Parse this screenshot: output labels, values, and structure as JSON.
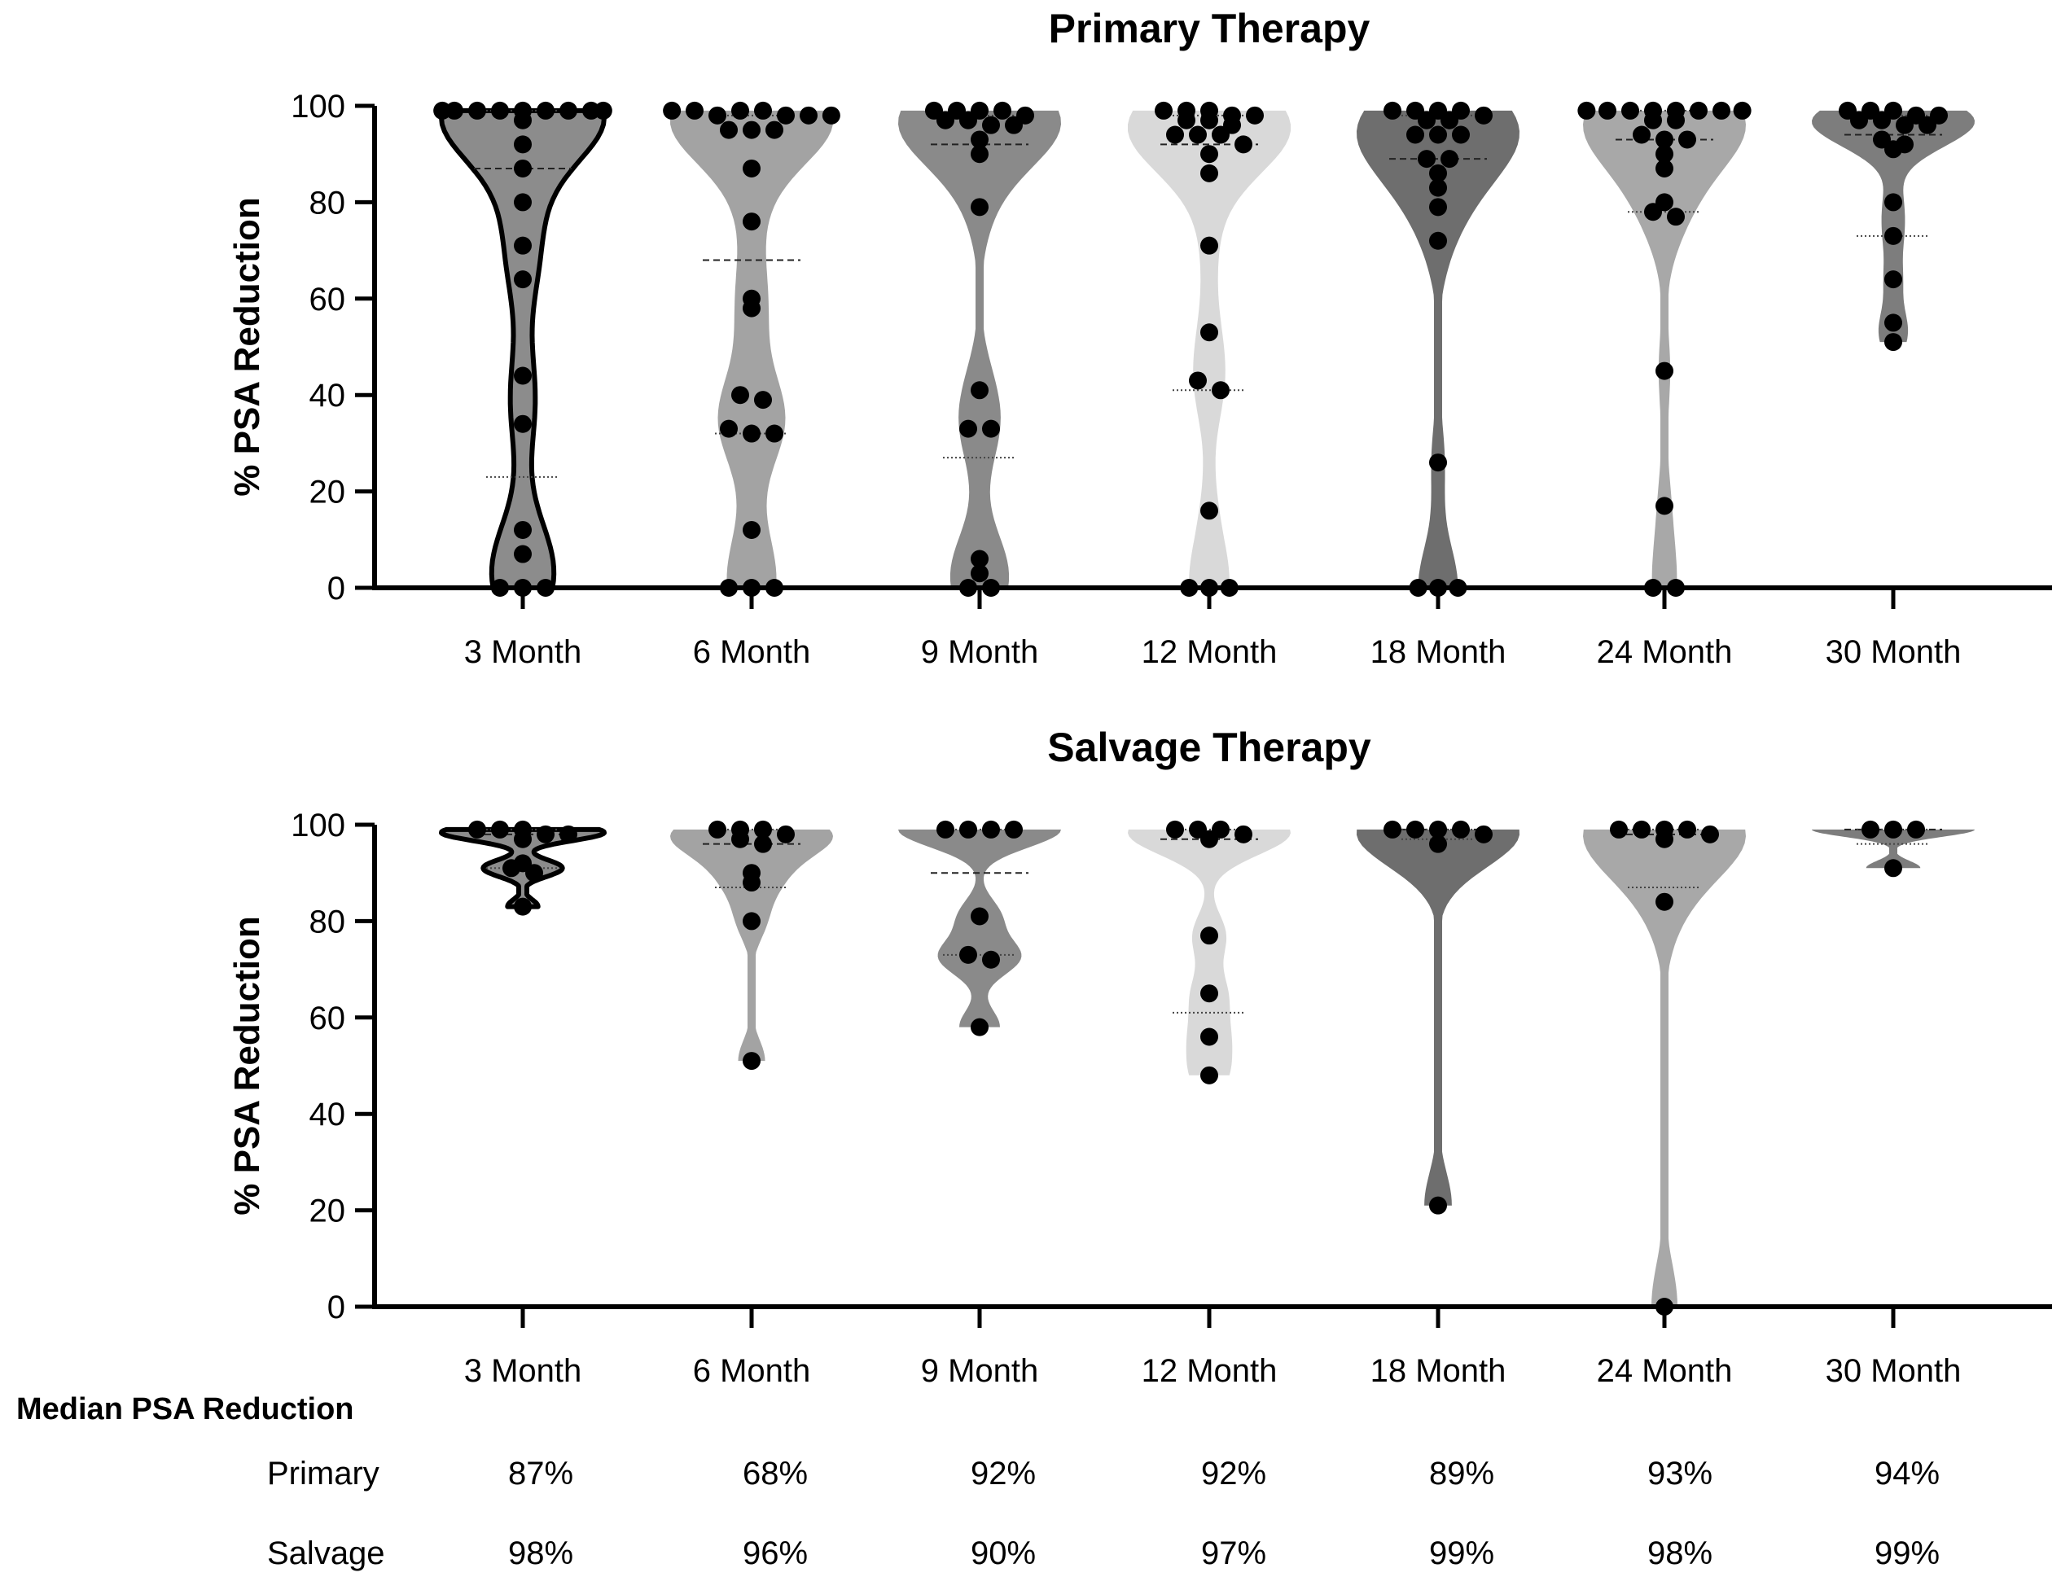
{
  "chart_data": [
    {
      "type": "violin",
      "title": "Primary Therapy",
      "ylabel": "% PSA Reduction",
      "xlabel": "",
      "ylim": [
        0,
        100
      ],
      "yticks": [
        0,
        20,
        40,
        60,
        80,
        100
      ],
      "categories": [
        "3 Month",
        "6 Month",
        "9 Month",
        "12 Month",
        "18 Month",
        "24 Month",
        "30 Month"
      ],
      "fill_colors": [
        "#8c8c8c",
        "#a3a3a3",
        "#8a8a8a",
        "#d9d9d9",
        "#6e6e6e",
        "#a8a8a8",
        "#7d7d7d"
      ],
      "series": [
        {
          "name": "3 Month",
          "median": 87,
          "q1": 23,
          "q3": 99,
          "points": [
            99,
            99,
            99,
            99,
            99,
            99,
            99,
            99,
            99,
            97,
            92,
            87,
            80,
            71,
            64,
            44,
            34,
            12,
            7,
            0,
            0,
            0
          ]
        },
        {
          "name": "6 Month",
          "median": 68,
          "q1": 32,
          "q3": 98,
          "points": [
            99,
            99,
            98,
            99,
            99,
            98,
            98,
            98,
            95,
            95,
            95,
            87,
            76,
            60,
            58,
            40,
            39,
            33,
            32,
            32,
            12,
            0,
            0,
            0
          ]
        },
        {
          "name": "9 Month",
          "median": 92,
          "q1": 27,
          "q3": 98,
          "points": [
            99,
            99,
            99,
            99,
            98,
            97,
            97,
            96,
            96,
            93,
            90,
            79,
            41,
            33,
            33,
            6,
            3,
            0,
            0
          ]
        },
        {
          "name": "12 Month",
          "median": 92,
          "q1": 41,
          "q3": 98,
          "points": [
            99,
            99,
            99,
            98,
            98,
            97,
            97,
            96,
            94,
            94,
            94,
            92,
            90,
            86,
            71,
            53,
            43,
            41,
            16,
            0,
            0,
            0
          ]
        },
        {
          "name": "18 Month",
          "median": 89,
          "q1": 0,
          "q3": 98,
          "points": [
            99,
            99,
            99,
            99,
            98,
            97,
            97,
            94,
            94,
            94,
            89,
            89,
            86,
            83,
            79,
            72,
            26,
            0,
            0,
            0
          ]
        },
        {
          "name": "24 Month",
          "median": 93,
          "q1": 78,
          "q3": 99,
          "points": [
            99,
            99,
            99,
            99,
            99,
            99,
            99,
            99,
            97,
            97,
            94,
            93,
            93,
            90,
            87,
            80,
            78,
            77,
            45,
            17,
            0,
            0
          ]
        },
        {
          "name": "30 Month",
          "median": 94,
          "q1": 73,
          "q3": 98,
          "points": [
            99,
            99,
            99,
            98,
            98,
            97,
            97,
            96,
            96,
            93,
            92,
            91,
            80,
            73,
            64,
            55,
            51
          ]
        }
      ]
    },
    {
      "type": "violin",
      "title": "Salvage Therapy",
      "ylabel": "% PSA Reduction",
      "xlabel": "",
      "ylim": [
        0,
        100
      ],
      "yticks": [
        0,
        20,
        40,
        60,
        80,
        100
      ],
      "categories": [
        "3 Month",
        "6 Month",
        "9 Month",
        "12 Month",
        "18 Month",
        "24 Month",
        "30 Month"
      ],
      "fill_colors": [
        "#8c8c8c",
        "#a3a3a3",
        "#8a8a8a",
        "#d9d9d9",
        "#6e6e6e",
        "#a8a8a8",
        "#7d7d7d"
      ],
      "series": [
        {
          "name": "3 Month",
          "median": 98,
          "q1": 91,
          "q3": 99,
          "points": [
            99,
            99,
            99,
            98,
            98,
            97,
            92,
            91,
            90,
            83
          ]
        },
        {
          "name": "6 Month",
          "median": 96,
          "q1": 87,
          "q3": 99,
          "points": [
            99,
            99,
            99,
            98,
            97,
            96,
            90,
            88,
            80,
            51
          ]
        },
        {
          "name": "9 Month",
          "median": 90,
          "q1": 73,
          "q3": 99,
          "points": [
            99,
            99,
            99,
            99,
            81,
            73,
            72,
            58
          ]
        },
        {
          "name": "12 Month",
          "median": 97,
          "q1": 61,
          "q3": 99,
          "points": [
            99,
            99,
            99,
            98,
            97,
            77,
            65,
            56,
            48
          ]
        },
        {
          "name": "18 Month",
          "median": 99,
          "q1": 97,
          "q3": 99,
          "points": [
            99,
            99,
            99,
            99,
            98,
            96,
            21
          ]
        },
        {
          "name": "24 Month",
          "median": 98,
          "q1": 87,
          "q3": 99,
          "points": [
            99,
            99,
            99,
            99,
            98,
            97,
            84,
            0
          ]
        },
        {
          "name": "30 Month",
          "median": 99,
          "q1": 96,
          "q3": 99,
          "points": [
            99,
            99,
            99,
            91
          ]
        }
      ]
    }
  ],
  "median_table": {
    "heading": "Median PSA Reduction",
    "rows": [
      {
        "label": "Primary",
        "values": [
          "87%",
          "68%",
          "92%",
          "92%",
          "89%",
          "93%",
          "94%"
        ]
      },
      {
        "label": "Salvage",
        "values": [
          "98%",
          "96%",
          "90%",
          "97%",
          "99%",
          "98%",
          "99%"
        ]
      }
    ]
  }
}
